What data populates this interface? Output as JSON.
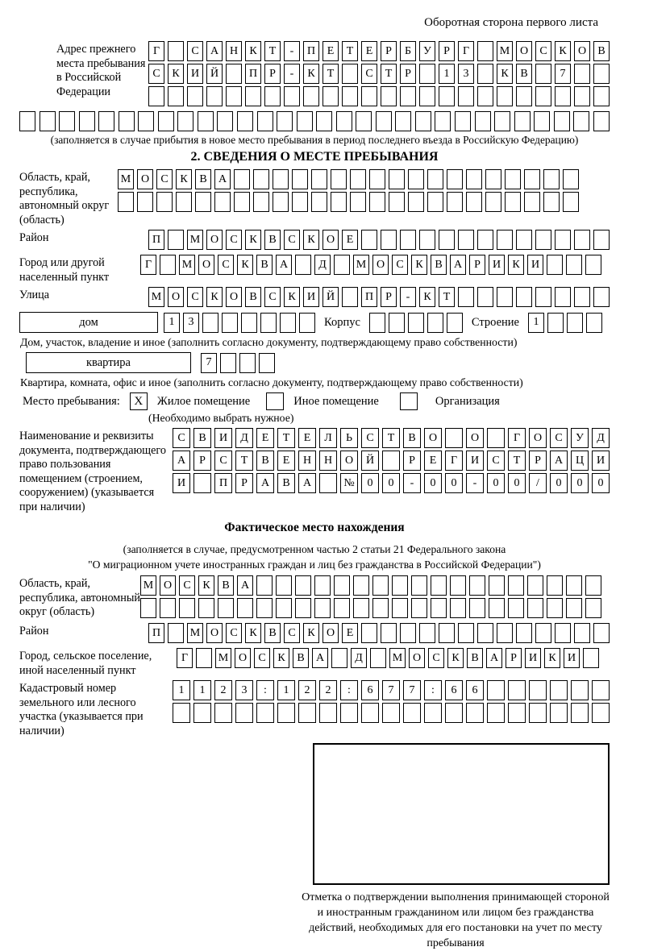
{
  "page": {
    "header_note": "Оборотная сторона первого листа"
  },
  "prev_stay": {
    "label": "Адрес прежнего места пребывания в Российской Федерации",
    "row1": {
      "text": "Г САНКТ-ПЕТЕРБУРГ МОСКОВ",
      "len": 24
    },
    "row2": {
      "text": "СКИЙ ПР-КТ СТР 13 КВ 7",
      "len": 24
    },
    "row3": {
      "text": "",
      "len": 24
    },
    "row4": {
      "text": "",
      "len": 30
    },
    "note": "(заполняется в случае прибытия в новое место пребывания в период последнего въезда в Российскую Федерацию)"
  },
  "section2": {
    "title": "2. СВЕДЕНИЯ О МЕСТЕ ПРЕБЫВАНИЯ",
    "region": {
      "label": "Область, край, республика, автономный округ (область)",
      "row1": {
        "text": "МОСКВА",
        "len": 24
      },
      "row2": {
        "text": "",
        "len": 24
      }
    },
    "district": {
      "label": "Район",
      "row": {
        "text": "П МОСКВСКОЕ",
        "len": 24
      }
    },
    "city": {
      "label": "Город или другой населенный пункт",
      "row": {
        "text": "Г МОСКВА Д МОСКВАРИКИ",
        "len": 24
      }
    },
    "street": {
      "label": "Улица",
      "row": {
        "text": "МОСКОВСКИЙ ПР-КТ",
        "len": 24
      }
    },
    "house": {
      "box_label": "дом",
      "house_row": {
        "text": "13",
        "len": 8
      },
      "korpus_label": "Корпус",
      "korpus_row": {
        "text": "",
        "len": 5
      },
      "stroenie_label": "Строение",
      "stroenie_row": {
        "text": "1",
        "len": 4
      }
    },
    "house_note": "Дом, участок, владение и иное (заполнить согласно документу, подтверждающему право собственности)",
    "apartment": {
      "box_label": "квартира",
      "row": {
        "text": "7",
        "len": 4
      }
    },
    "apartment_note": "Квартира, комната, офис и иное (заполнить согласно документу, подтверждающему право собственности)",
    "stay_type": {
      "label": "Место пребывания:",
      "options": [
        {
          "label": "Жилое помещение",
          "mark": "X"
        },
        {
          "label": "Иное помещение",
          "mark": ""
        },
        {
          "label": "Организация",
          "mark": ""
        }
      ],
      "note": "(Необходимо выбрать нужное)"
    },
    "doc": {
      "label": "Наименование и реквизиты документа, подтверждающего право пользования помещением (строением, сооружением) (указывается при наличии)",
      "row1": {
        "text": "СВИДЕТЕЛЬСТВО О ГОСУД",
        "len": 21
      },
      "row2": {
        "text": "АРСТВЕННОЙ РЕГИСТРАЦИ",
        "len": 21
      },
      "row3": {
        "text": "И ПРАВА №00-00-00/000",
        "len": 21
      }
    }
  },
  "actual_location": {
    "title": "Фактическое место нахождения",
    "note_line1": "(заполняется в случае, предусмотренном частью 2 статьи 21 Федерального закона",
    "note_line2": "\"О миграционном учете иностранных граждан и лиц без гражданства в Российской Федерации\")",
    "region": {
      "label": "Область, край, республика, автономный округ (область)",
      "row1": {
        "text": "МОСКВА",
        "len": 24
      },
      "row2": {
        "text": "",
        "len": 24
      }
    },
    "district": {
      "label": "Район",
      "row": {
        "text": "П МОСКВСКОЕ",
        "len": 24
      }
    },
    "city": {
      "label": "Город, сельское поселение, иной населенный пункт",
      "row": {
        "text": "Г МОСКВА Д МОСКВАРИКИ",
        "len": 22
      }
    },
    "cadastral": {
      "label": "Кадастровый номер земельного или лесного участка (указывается при наличии)",
      "row1": {
        "text": "1123:122:677:66",
        "len": 21
      },
      "row2": {
        "text": "",
        "len": 21
      }
    },
    "stamp_caption": "Отметка о подтверждении выполнения принимающей стороной и иностранным гражданином или лицом без гражданства действий, необходимых для его постановки на учет по месту пребывания"
  }
}
